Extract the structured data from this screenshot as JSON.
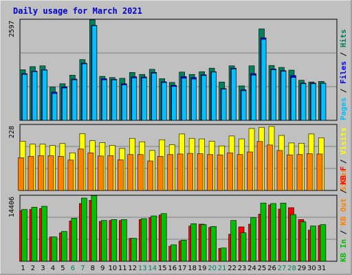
{
  "chart_data": [
    {
      "type": "bar",
      "panel": "top",
      "title": "Daily usage for March 2021",
      "ymax_label": "2597",
      "ymax": 2597,
      "categories": [
        "1",
        "2",
        "3",
        "4",
        "5",
        "6",
        "7",
        "8",
        "9",
        "10",
        "11",
        "12",
        "13",
        "14",
        "15",
        "16",
        "17",
        "18",
        "19",
        "20",
        "21",
        "22",
        "23",
        "24",
        "25",
        "26",
        "27",
        "28",
        "29",
        "30",
        "31"
      ],
      "weekend_days": [
        "6",
        "7",
        "13",
        "14",
        "20",
        "21",
        "27",
        "28"
      ],
      "legend": [
        "Pages",
        "Files",
        "Hits"
      ],
      "series": [
        {
          "name": "Hits",
          "color": "#00805c",
          "values": [
            1300,
            1380,
            1400,
            855,
            940,
            1160,
            1560,
            2580,
            1130,
            1100,
            1080,
            1230,
            1180,
            1310,
            1070,
            975,
            1240,
            1180,
            1250,
            1340,
            985,
            1400,
            885,
            1400,
            2350,
            1410,
            1360,
            1290,
            1030,
            985,
            1000
          ]
        },
        {
          "name": "Files",
          "color": "#0000ff",
          "values": [
            1200,
            1265,
            1300,
            725,
            860,
            1060,
            1470,
            2440,
            1070,
            1055,
            940,
            1120,
            1115,
            1230,
            990,
            900,
            1125,
            1100,
            1170,
            1250,
            815,
            1340,
            785,
            1200,
            2120,
            1320,
            1275,
            1150,
            955,
            955,
            955
          ]
        },
        {
          "name": "Pages",
          "color": "#00c0ff",
          "values": [
            1180,
            1250,
            1290,
            690,
            830,
            1040,
            1450,
            2430,
            1040,
            1040,
            910,
            1090,
            1090,
            1210,
            970,
            870,
            1080,
            1060,
            1150,
            1240,
            800,
            1320,
            760,
            1160,
            2080,
            1300,
            1260,
            1100,
            940,
            940,
            950
          ]
        }
      ]
    },
    {
      "type": "bar",
      "panel": "middle",
      "ymax_label": "228",
      "ymax": 228,
      "legend": [
        "Sites",
        "Visits"
      ],
      "series": [
        {
          "name": "Visits",
          "color": "#ffff00",
          "values": [
            170,
            160,
            160,
            155,
            162,
            130,
            196,
            172,
            165,
            156,
            145,
            180,
            168,
            138,
            175,
            158,
            195,
            180,
            178,
            170,
            154,
            188,
            178,
            214,
            218,
            221,
            190,
            164,
            163,
            195,
            182
          ]
        },
        {
          "name": "Sites",
          "color": "#ff8000",
          "values": [
            113,
            118,
            120,
            120,
            118,
            105,
            143,
            130,
            119,
            120,
            106,
            124,
            124,
            102,
            118,
            124,
            126,
            128,
            127,
            124,
            123,
            130,
            124,
            133,
            169,
            157,
            138,
            123,
            124,
            127,
            126
          ]
        }
      ]
    },
    {
      "type": "bar",
      "panel": "bottom",
      "ymax_label": "14406",
      "ymax": 14406,
      "legend": [
        "KB In",
        "KB Out",
        "KB F"
      ],
      "series": [
        {
          "name": "KB F",
          "color": "#ff0000",
          "values": [
            11000,
            11300,
            11500,
            5300,
            6200,
            8800,
            12600,
            13300,
            8700,
            8900,
            8900,
            5000,
            9100,
            9500,
            10100,
            3300,
            4400,
            7700,
            8100,
            7400,
            2800,
            5900,
            7500,
            8100,
            10300,
            12300,
            11400,
            11700,
            9100,
            6800,
            7800
          ]
        },
        {
          "name": "KB In",
          "color": "#00c000",
          "values": [
            11300,
            11800,
            12000,
            5300,
            6500,
            9400,
            13800,
            14300,
            8900,
            9100,
            9100,
            5000,
            9300,
            9900,
            10400,
            3600,
            4600,
            8200,
            8000,
            7600,
            2900,
            8900,
            6200,
            9500,
            12700,
            12600,
            12700,
            10200,
            8600,
            7700,
            8000
          ]
        }
      ]
    }
  ]
}
